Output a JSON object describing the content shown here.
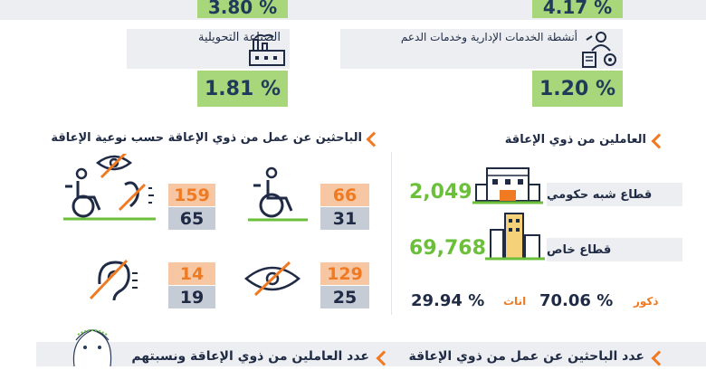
{
  "top_sectors": {
    "left_top_value": "3.80 %",
    "right_top_value": "4.17 %",
    "left_label": "الصناعة التحويلية",
    "left_value": "1.81 %",
    "right_label": "أنشطة الخدمات الإدارية وخدمات الدعم",
    "right_value": "1.20 %"
  },
  "job_seekers": {
    "title": "الباحثين عن عمل من ذوي الإعاقة حسب نوعية الإعاقة",
    "items": [
      {
        "icon": "wheelchair-deaf-blind-icon",
        "top": "159",
        "bottom": "65"
      },
      {
        "icon": "wheelchair-icon",
        "top": "66",
        "bottom": "31"
      },
      {
        "icon": "deaf-ear-icon",
        "top": "14",
        "bottom": "19"
      },
      {
        "icon": "blind-eye-icon",
        "top": "129",
        "bottom": "25"
      }
    ]
  },
  "workers": {
    "title": "العاملين من ذوي الإعاقة",
    "semi_gov_value": "2,049",
    "semi_gov_label": "قطاع شبه حكومي",
    "private_value": "69,768",
    "private_label": "قطاع خاص",
    "females_pct": "29.94 %",
    "females_label": "اناث",
    "males_pct": "70.06 %",
    "males_label": "ذكور"
  },
  "bottom": {
    "left_heading": "عدد العاملين من ذوي الإعاقة ونسبتهم",
    "right_heading": "عدد الباحثين عن عمل من ذوي الإعاقة"
  },
  "colors": {
    "accent": "#f07a22",
    "green": "#6bbf3a",
    "navy": "#1f2a44",
    "panel_gray": "#eceef1"
  }
}
